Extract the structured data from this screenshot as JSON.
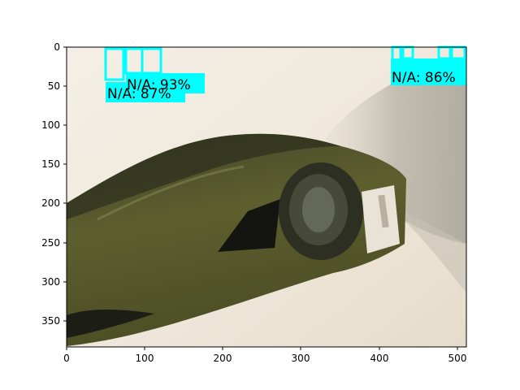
{
  "photo": {
    "subject": "green glass wine bottle lying diagonally on a beige surface",
    "colors": {
      "background_light": "#f1ebe1",
      "background_shadow": "#b9b3a6",
      "bottle_glass": "#5a5a2c",
      "bottle_dark": "#1f2117",
      "label_paper": "#e9e2d6"
    }
  },
  "axes": {
    "x_ticks": [
      "0",
      "100",
      "200",
      "300",
      "400",
      "500"
    ],
    "y_ticks": [
      "0",
      "50",
      "100",
      "150",
      "200",
      "250",
      "300",
      "350"
    ],
    "x_range": [
      0,
      512
    ],
    "y_range": [
      384,
      0
    ]
  },
  "detections": [
    {
      "label": "N/A: 93%",
      "color": "#00ffff"
    },
    {
      "label": "N/A: 87%",
      "color": "#00ffff"
    },
    {
      "label": "N/A: 86%",
      "color": "#00ffff"
    }
  ]
}
